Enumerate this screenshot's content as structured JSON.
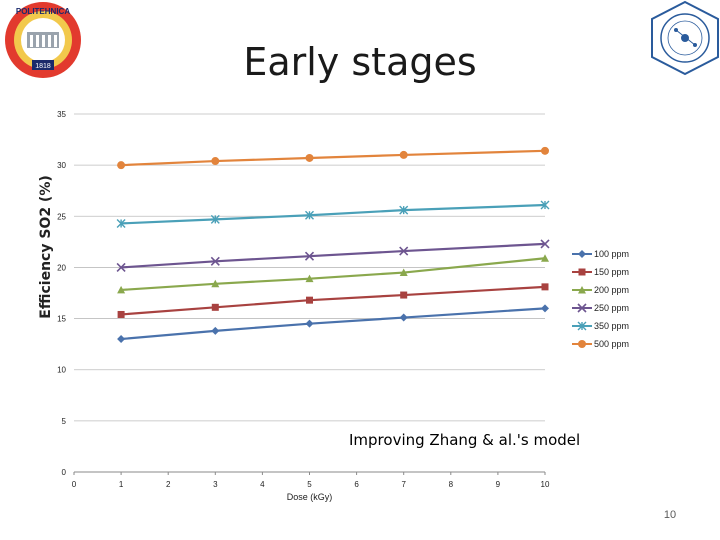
{
  "slide": {
    "title": "Early stages",
    "page_number": "10",
    "annotation": "Improving Zhang & al.'s model"
  },
  "logos": {
    "left_text": "POLITEHNICA",
    "left_year": "1818"
  },
  "colors": {
    "100 ppm": "#4a72ac",
    "150 ppm": "#a84240",
    "200 ppm": "#8aa84d",
    "250 ppm": "#6d5590",
    "350 ppm": "#4aa0b8",
    "500 ppm": "#e2843c"
  },
  "chart_data": {
    "type": "line",
    "title": "",
    "xlabel": "Dose (kGy)",
    "ylabel": "Efficiency SO2 (%)",
    "xlim": [
      0,
      10
    ],
    "ylim": [
      0,
      35
    ],
    "x_ticks": [
      "0",
      "1",
      "2",
      "3",
      "4",
      "5",
      "6",
      "7",
      "8",
      "9",
      "10"
    ],
    "y_ticks": [
      "0",
      "5",
      "10",
      "15",
      "20",
      "25",
      "30",
      "35"
    ],
    "legend_position": "right",
    "series": [
      {
        "name": "100 ppm",
        "marker": "diamond",
        "x": [
          1,
          3,
          5,
          7,
          10
        ],
        "values": [
          13.0,
          13.8,
          14.5,
          15.1,
          16.0
        ]
      },
      {
        "name": "150 ppm",
        "marker": "square",
        "x": [
          1,
          3,
          5,
          7,
          10
        ],
        "values": [
          15.4,
          16.1,
          16.8,
          17.3,
          18.1
        ]
      },
      {
        "name": "200 ppm",
        "marker": "triangle",
        "x": [
          1,
          3,
          5,
          7,
          10
        ],
        "values": [
          17.8,
          18.4,
          18.9,
          19.5,
          20.9
        ]
      },
      {
        "name": "250 ppm",
        "marker": "x",
        "x": [
          1,
          3,
          5,
          7,
          10
        ],
        "values": [
          20.0,
          20.6,
          21.1,
          21.6,
          22.3
        ]
      },
      {
        "name": "350 ppm",
        "marker": "star",
        "x": [
          1,
          3,
          5,
          7,
          10
        ],
        "values": [
          24.3,
          24.7,
          25.1,
          25.6,
          26.1
        ]
      },
      {
        "name": "500 ppm",
        "marker": "circle",
        "x": [
          1,
          3,
          5,
          7,
          10
        ],
        "values": [
          30.0,
          30.4,
          30.7,
          31.0,
          31.4
        ]
      }
    ]
  }
}
